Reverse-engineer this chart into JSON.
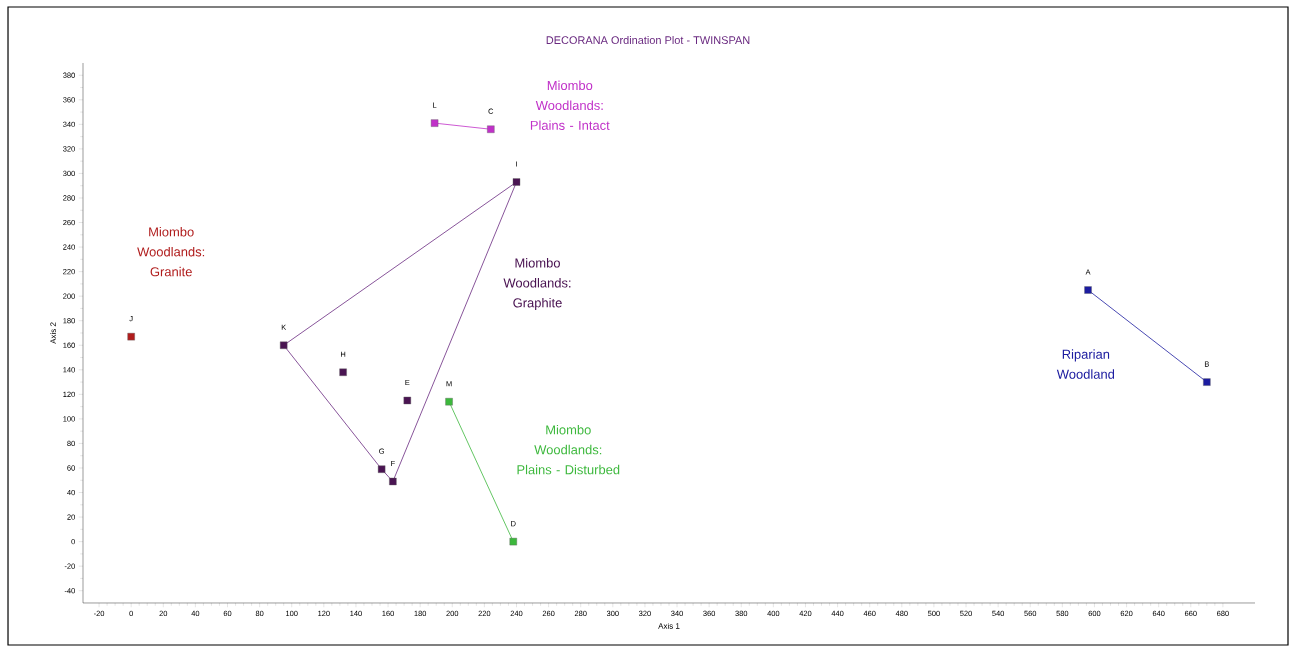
{
  "chart_data": {
    "type": "scatter",
    "title": "DECORANA Ordination Plot - TWINSPAN",
    "xlabel": "Axis 1",
    "ylabel": "Axis 2",
    "marker": "square",
    "series": [
      {
        "name": "Miombo Woodlands: Granite",
        "color": "#b01c1c",
        "x": [
          0
        ],
        "values": [
          167
        ]
      },
      {
        "name": "Miombo Woodlands: Graphite",
        "color": "#4a1452",
        "x": [
          95,
          132,
          172,
          156,
          163,
          240
        ],
        "values": [
          160,
          138,
          115,
          59,
          49,
          293
        ]
      },
      {
        "type": "line",
        "color": "#6a2a80",
        "marker": "none",
        "x": [
          95,
          240
        ],
        "values": [
          160,
          293
        ]
      },
      {
        "type": "line",
        "color": "#6a2a80",
        "marker": "none",
        "x": [
          240,
          163
        ],
        "values": [
          293,
          49
        ]
      },
      {
        "type": "line",
        "color": "#6a2a80",
        "marker": "none",
        "x": [
          163,
          156
        ],
        "values": [
          49,
          59
        ]
      },
      {
        "type": "line",
        "color": "#6a2a80",
        "marker": "none",
        "x": [
          156,
          95
        ],
        "values": [
          59,
          160
        ]
      },
      {
        "name": "Miombo Woodlands: Plains - Intact",
        "type": "line",
        "color": "#c030c8",
        "x": [
          189,
          224
        ],
        "values": [
          341,
          336
        ]
      },
      {
        "name": "Miombo Woodlands: Plains - Disturbed",
        "type": "line",
        "color": "#3cb83c",
        "x": [
          198,
          238
        ],
        "values": [
          114,
          0
        ]
      },
      {
        "name": "Riparian Woodland",
        "type": "line",
        "color": "#1c1ca0",
        "x": [
          596,
          670
        ],
        "values": [
          205,
          130
        ]
      }
    ],
    "annotations": [
      {
        "text": "J",
        "x": 0,
        "y": 167
      },
      {
        "text": "K",
        "x": 95,
        "y": 160
      },
      {
        "text": "H",
        "x": 132,
        "y": 138
      },
      {
        "text": "E",
        "x": 172,
        "y": 115
      },
      {
        "text": "G",
        "x": 156,
        "y": 59
      },
      {
        "text": "F",
        "x": 163,
        "y": 49
      },
      {
        "text": "I",
        "x": 240,
        "y": 293
      },
      {
        "text": "L",
        "x": 189,
        "y": 341
      },
      {
        "text": "C",
        "x": 224,
        "y": 336
      },
      {
        "text": "M",
        "x": 198,
        "y": 114
      },
      {
        "text": "D",
        "x": 238,
        "y": 0
      },
      {
        "text": "A",
        "x": 596,
        "y": 205
      },
      {
        "text": "B",
        "x": 670,
        "y": 130
      }
    ],
    "xlim": [
      -30,
      700
    ],
    "ylim": [
      -50,
      390
    ],
    "xticks": [
      -20,
      0,
      20,
      40,
      60,
      80,
      100,
      120,
      140,
      160,
      180,
      200,
      220,
      240,
      260,
      280,
      300,
      320,
      340,
      360,
      380,
      400,
      420,
      440,
      460,
      480,
      500,
      520,
      540,
      560,
      580,
      600,
      620,
      640,
      660,
      680
    ],
    "yticks": [
      -40,
      -20,
      0,
      20,
      40,
      60,
      80,
      100,
      120,
      140,
      160,
      180,
      200,
      220,
      240,
      260,
      280,
      300,
      320,
      340,
      360,
      380
    ],
    "grid": false
  }
}
